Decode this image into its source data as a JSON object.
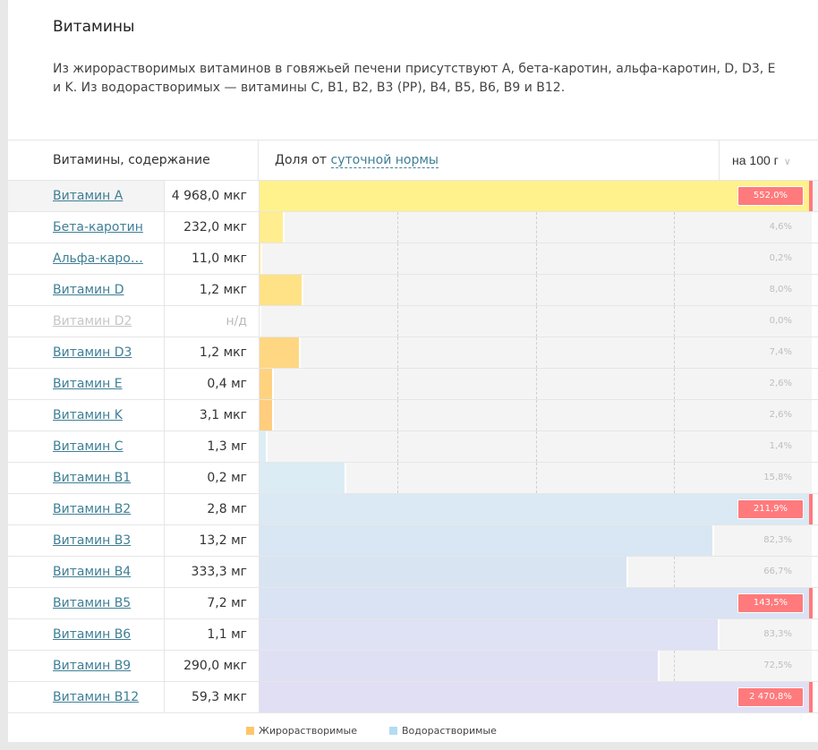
{
  "section": {
    "title": "Витамины",
    "description": "Из жирорастворимых витаминов в говяжьей печени присутствуют A, бета-каротин, альфа-каротин, D, D3, E и K. Из водорастворимых — витамины C, B1, B2, B3 (PP), B4, B5, B6, B9 и B12."
  },
  "table": {
    "header": {
      "col_name": "Витамины, содержание",
      "col_share_prefix": "Доля от ",
      "col_share_link": "суточной нормы",
      "portion_select": "на 100 г",
      "chevron_icon": "chevron-down-icon"
    },
    "rows": [
      {
        "name": "Витамин А",
        "amount": "4 968,0 мкг",
        "percent_label": "552,0%",
        "percent": 552.0,
        "group": "fat",
        "available": true
      },
      {
        "name": "Бета-каротин",
        "amount": "232,0 мкг",
        "percent_label": "4,6%",
        "percent": 4.6,
        "group": "fat",
        "available": true
      },
      {
        "name": "Альфа-каро…",
        "amount": "11,0 мкг",
        "percent_label": "0,2%",
        "percent": 0.2,
        "group": "fat",
        "available": true
      },
      {
        "name": "Витамин D",
        "amount": "1,2 мкг",
        "percent_label": "8,0%",
        "percent": 8.0,
        "group": "fat",
        "available": true
      },
      {
        "name": "Витамин D2",
        "amount": "н/д",
        "percent_label": "0,0%",
        "percent": 0.0,
        "group": "fat",
        "available": false
      },
      {
        "name": "Витамин D3",
        "amount": "1,2 мкг",
        "percent_label": "7,4%",
        "percent": 7.4,
        "group": "fat",
        "available": true
      },
      {
        "name": "Витамин E",
        "amount": "0,4 мг",
        "percent_label": "2,6%",
        "percent": 2.6,
        "group": "fat",
        "available": true
      },
      {
        "name": "Витамин K",
        "amount": "3,1 мкг",
        "percent_label": "2,6%",
        "percent": 2.6,
        "group": "fat",
        "available": true
      },
      {
        "name": "Витамин C",
        "amount": "1,3 мг",
        "percent_label": "1,4%",
        "percent": 1.4,
        "group": "water",
        "available": true
      },
      {
        "name": "Витамин B1",
        "amount": "0,2 мг",
        "percent_label": "15,8%",
        "percent": 15.8,
        "group": "water",
        "available": true
      },
      {
        "name": "Витамин B2",
        "amount": "2,8 мг",
        "percent_label": "211,9%",
        "percent": 211.9,
        "group": "water",
        "available": true
      },
      {
        "name": "Витамин B3",
        "amount": "13,2 мг",
        "percent_label": "82,3%",
        "percent": 82.3,
        "group": "water",
        "available": true
      },
      {
        "name": "Витамин B4",
        "amount": "333,3 мг",
        "percent_label": "66,7%",
        "percent": 66.7,
        "group": "water",
        "available": true
      },
      {
        "name": "Витамин B5",
        "amount": "7,2 мг",
        "percent_label": "143,5%",
        "percent": 143.5,
        "group": "water",
        "available": true
      },
      {
        "name": "Витамин B6",
        "amount": "1,1 мг",
        "percent_label": "83,3%",
        "percent": 83.3,
        "group": "water",
        "available": true
      },
      {
        "name": "Витамин B9",
        "amount": "290,0 мкг",
        "percent_label": "72,5%",
        "percent": 72.5,
        "group": "water",
        "available": true
      },
      {
        "name": "Витамин B12",
        "amount": "59,3 мкг",
        "percent_label": "2 470,8%",
        "percent": 2470.8,
        "group": "water",
        "available": true
      }
    ]
  },
  "legend": {
    "fat_label": "Жирорастворимые",
    "water_label": "Водорастворимые"
  },
  "colors": {
    "bar_colors": [
      "#fff28c",
      "#ffed8f",
      "#ffe88c",
      "#ffe286",
      "#ffdc84",
      "#ffd782",
      "#ffd27f",
      "#ffcd7d",
      "#dcedf6",
      "#dbecf5",
      "#dae9f3",
      "#d9e6f3",
      "#d9e4f3",
      "#d9e3f3",
      "#dfe1f5",
      "#e0e0f5",
      "#e0dff4"
    ],
    "fat_swatch": "#fdc66c",
    "water_swatch": "#b3dcf2",
    "overflow": "#ff7a7c",
    "link": "#3f7f95"
  },
  "chart_data": {
    "type": "bar",
    "title": "Доля от суточной нормы, на 100 г",
    "categories": [
      "Витамин А",
      "Бета-каротин",
      "Альфа-каротин",
      "Витамин D",
      "Витамин D2",
      "Витамин D3",
      "Витамин E",
      "Витамин K",
      "Витамин C",
      "Витамин B1",
      "Витамин B2",
      "Витамин B3",
      "Витамин B4",
      "Витамин B5",
      "Витамин B6",
      "Витамин B9",
      "Витамин B12"
    ],
    "values": [
      552.0,
      4.6,
      0.2,
      8.0,
      0.0,
      7.4,
      2.6,
      2.6,
      1.4,
      15.8,
      211.9,
      82.3,
      66.7,
      143.5,
      83.3,
      72.5,
      2470.8
    ],
    "xlabel": "% суточной нормы",
    "xlim": [
      0,
      100
    ],
    "grid": true,
    "gridlines_at": [
      25,
      50,
      75
    ],
    "orientation": "horizontal",
    "legend": [
      "Жирорастворимые",
      "Водорастворимые"
    ],
    "legend_position": "bottom"
  }
}
